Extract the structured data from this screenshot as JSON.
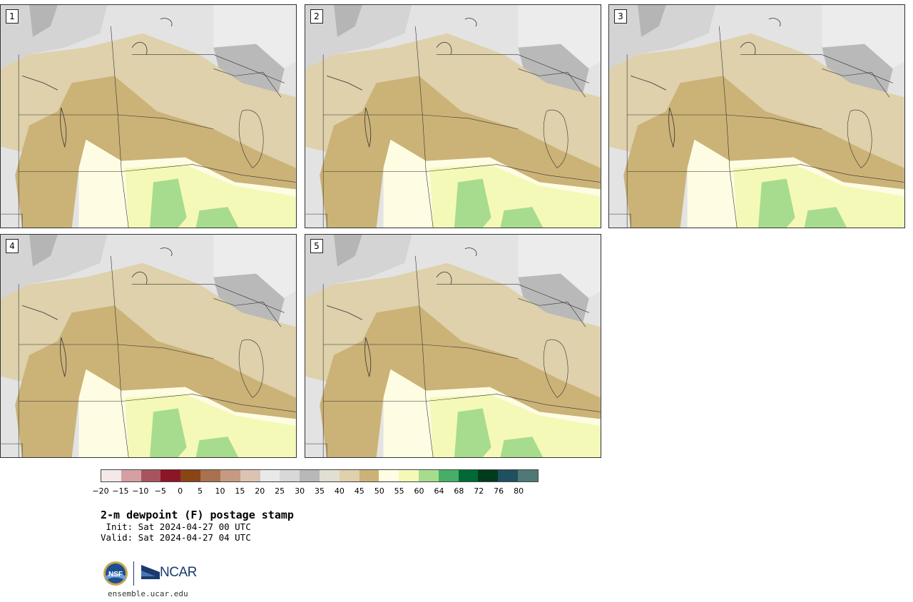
{
  "panels": [
    {
      "label": "1"
    },
    {
      "label": "2"
    },
    {
      "label": "3"
    },
    {
      "label": "4"
    },
    {
      "label": "5"
    }
  ],
  "colorbar": {
    "colors": [
      "#f4e8e8",
      "#d4a0a4",
      "#a8545e",
      "#8c1626",
      "#8a4515",
      "#a8714f",
      "#c59a80",
      "#dcc3b1",
      "#e9e9e9",
      "#d8d8d8",
      "#b8b8b8",
      "#e1dfd3",
      "#ded1ab",
      "#cbb277",
      "#fefde3",
      "#f5f9b8",
      "#a7dc8e",
      "#46ae67",
      "#006a36",
      "#003b1e",
      "#1e5060",
      "#4f7876"
    ],
    "tick_labels": [
      "−20",
      "−15",
      "−10",
      "−5",
      "0",
      "5",
      "10",
      "15",
      "20",
      "25",
      "30",
      "35",
      "40",
      "45",
      "50",
      "55",
      "60",
      "64",
      "68",
      "72",
      "76",
      "80"
    ]
  },
  "title": "2-m dewpoint (F) postage stamp",
  "init": " Init: Sat 2024-04-27 00 UTC",
  "valid": "Valid: Sat 2024-04-27 04 UTC",
  "logos": {
    "nsf": "NSF",
    "ncar": "NCAR"
  },
  "url": "ensemble.ucar.edu"
}
